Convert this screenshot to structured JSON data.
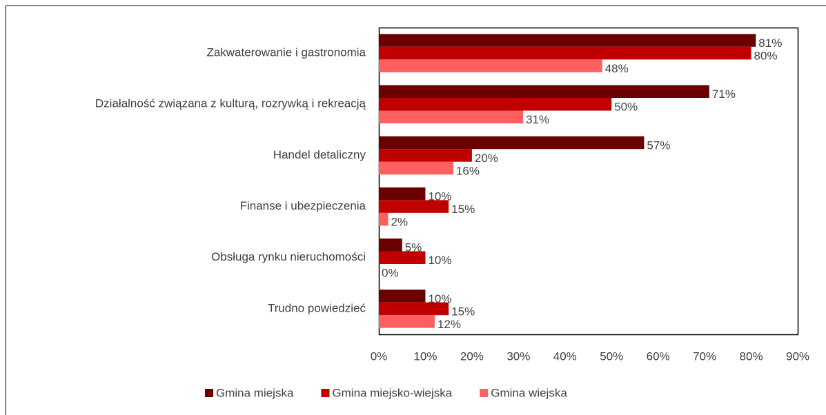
{
  "chart_data": {
    "type": "bar",
    "orientation": "horizontal",
    "categories": [
      "Zakwaterowanie i gastronomia",
      "Działalność związana z kulturą, rozrywką i rekreacją",
      "Handel detaliczny",
      "Finanse i ubezpieczenia",
      "Obsługa rynku nieruchomości",
      "Trudno powiedzieć"
    ],
    "series": [
      {
        "name": "Gmina miejska",
        "color": "#6b0000",
        "values": [
          81,
          71,
          57,
          10,
          5,
          10
        ],
        "value_labels": [
          "81%",
          "71%",
          "57%",
          "10%",
          "5%",
          "10%"
        ]
      },
      {
        "name": "Gmina miejsko-wiejska",
        "color": "#c00000",
        "values": [
          80,
          50,
          20,
          15,
          10,
          15
        ],
        "value_labels": [
          "80%",
          "50%",
          "20%",
          "15%",
          "10%",
          "15%"
        ]
      },
      {
        "name": "Gmina wiejska",
        "color": "#ff5f5f",
        "values": [
          48,
          31,
          16,
          2,
          0,
          12
        ],
        "value_labels": [
          "48%",
          "31%",
          "16%",
          "2%",
          "0%",
          "12%"
        ]
      }
    ],
    "xlim": [
      0,
      90
    ],
    "xticks": [
      {
        "value": 0,
        "label": "0%"
      },
      {
        "value": 10,
        "label": "10%"
      },
      {
        "value": 20,
        "label": "20%"
      },
      {
        "value": 30,
        "label": "30%"
      },
      {
        "value": 40,
        "label": "40%"
      },
      {
        "value": 50,
        "label": "50%"
      },
      {
        "value": 60,
        "label": "60%"
      },
      {
        "value": 70,
        "label": "70%"
      },
      {
        "value": 80,
        "label": "80%"
      },
      {
        "value": 90,
        "label": "90%"
      }
    ],
    "legend": "bottom"
  }
}
